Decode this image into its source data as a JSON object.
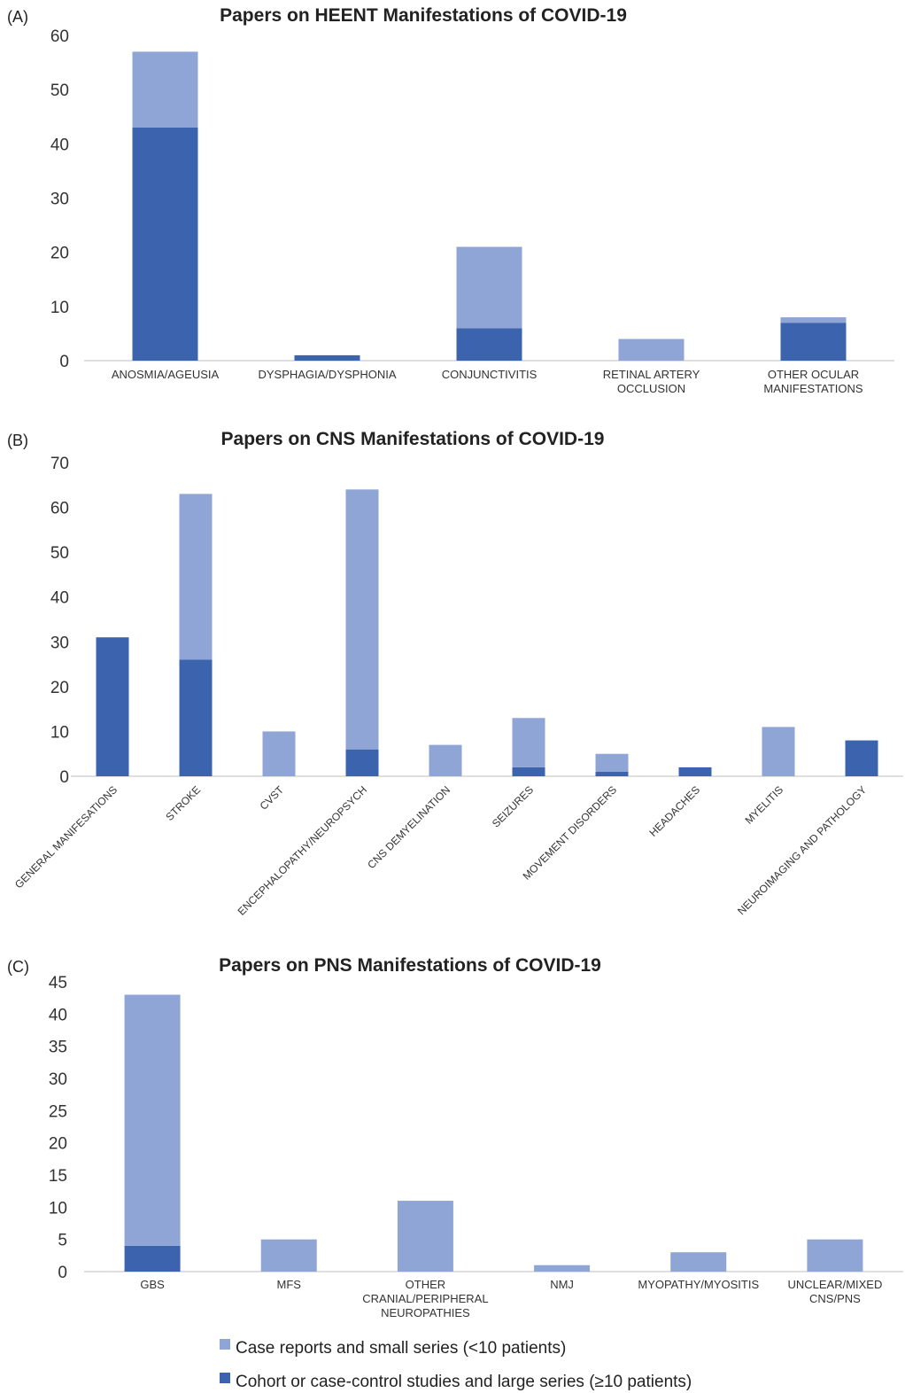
{
  "colors": {
    "small_series": "#8FA5D6",
    "large_series": "#3C63AD"
  },
  "legend": {
    "items": [
      {
        "label": "Case reports and small series (<10 patients)",
        "color": "#8FA5D6"
      },
      {
        "label": "Cohort or case-control studies and large series (≥10 patients)",
        "color": "#3C63AD"
      }
    ]
  },
  "chart_data": [
    {
      "panel_label": "(A)",
      "type": "bar",
      "stacked": true,
      "title": "Papers on HEENT Manifestations of COVID-19",
      "xlabel": "",
      "ylabel": "",
      "ylim": [
        0,
        60
      ],
      "yticks": [
        0,
        10,
        20,
        30,
        40,
        50,
        60
      ],
      "categories": [
        [
          "ANOSMIA/AGEUSIA"
        ],
        [
          "DYSPHAGIA/DYSPHONIA"
        ],
        [
          "CONJUNCTIVITIS"
        ],
        [
          "RETINAL ARTERY",
          "OCCLUSION"
        ],
        [
          "OTHER OCULAR",
          "MANIFESTATIONS"
        ]
      ],
      "series": [
        {
          "name": "Cohort or case-control studies and large series (≥10 patients)",
          "color": "#3C63AD",
          "values": [
            43,
            1,
            6,
            0,
            7
          ]
        },
        {
          "name": "Case reports and small series (<10 patients)",
          "color": "#8FA5D6",
          "values": [
            14,
            0,
            15,
            4,
            1
          ]
        }
      ]
    },
    {
      "panel_label": "(B)",
      "type": "bar",
      "stacked": true,
      "title": "Papers on CNS Manifestations of COVID-19",
      "xlabel": "",
      "ylabel": "",
      "ylim": [
        0,
        70
      ],
      "yticks": [
        0,
        10,
        20,
        30,
        40,
        50,
        60,
        70
      ],
      "categories": [
        [
          "GENERAL MANIFESATIONS"
        ],
        [
          "STROKE"
        ],
        [
          "CVST"
        ],
        [
          "ENCEPHALOPATHY/NEUROPSYCH"
        ],
        [
          "CNS DEMYELINATION"
        ],
        [
          "SEIZURES"
        ],
        [
          "MOVEMENT DISORDERS"
        ],
        [
          "HEADACHES"
        ],
        [
          "MYELITIS"
        ],
        [
          "NEUROIMAGING AND PATHOLOGY"
        ]
      ],
      "series": [
        {
          "name": "Cohort or case-control studies and large series (≥10 patients)",
          "color": "#3C63AD",
          "values": [
            31,
            26,
            0,
            6,
            0,
            2,
            1,
            2,
            0,
            8
          ]
        },
        {
          "name": "Case reports and small series (<10 patients)",
          "color": "#8FA5D6",
          "values": [
            0,
            37,
            10,
            58,
            7,
            11,
            4,
            0,
            11,
            0
          ]
        }
      ]
    },
    {
      "panel_label": "(C)",
      "type": "bar",
      "stacked": true,
      "title": "Papers on PNS Manifestations of COVID-19",
      "xlabel": "",
      "ylabel": "",
      "ylim": [
        0,
        45
      ],
      "yticks": [
        0,
        5,
        10,
        15,
        20,
        25,
        30,
        35,
        40,
        45
      ],
      "categories": [
        [
          "GBS"
        ],
        [
          "MFS"
        ],
        [
          "OTHER",
          "CRANIAL/PERIPHERAL",
          "NEUROPATHIES"
        ],
        [
          "NMJ"
        ],
        [
          "MYOPATHY/MYOSITIS"
        ],
        [
          "UNCLEAR/MIXED",
          "CNS/PNS"
        ]
      ],
      "series": [
        {
          "name": "Cohort or case-control studies and large series (≥10 patients)",
          "color": "#3C63AD",
          "values": [
            4,
            0,
            0,
            0,
            0,
            0
          ]
        },
        {
          "name": "Case reports and small series (<10 patients)",
          "color": "#8FA5D6",
          "values": [
            39,
            5,
            11,
            1,
            3,
            5
          ]
        }
      ]
    }
  ]
}
